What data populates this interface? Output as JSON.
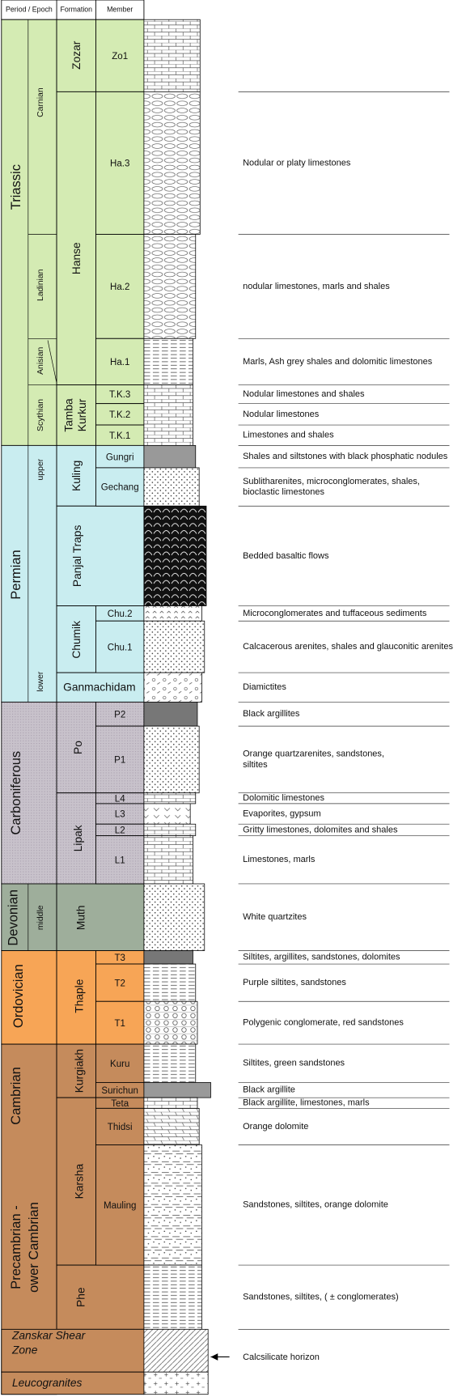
{
  "header": {
    "period": "Period / Epoch",
    "formation": "Formation",
    "member": "Member"
  },
  "periods": [
    {
      "name": "Triassic"
    },
    {
      "name": "Permian"
    },
    {
      "name": "Carboniferous"
    },
    {
      "name": "Devonian"
    },
    {
      "name": "Ordovician"
    },
    {
      "name": "Cambrian"
    }
  ],
  "precambrian_label": [
    "Precambrian -",
    "ower Cambrian"
  ],
  "epochs": [
    {
      "name": "Carnian"
    },
    {
      "name": "Ladinian"
    },
    {
      "name": "Anisian"
    },
    {
      "name": "Scythian"
    },
    {
      "name": "upper"
    },
    {
      "name": "lower"
    },
    {
      "name": "middle"
    }
  ],
  "formations": [
    {
      "lines": [
        "Zozar"
      ]
    },
    {
      "lines": [
        "Hanse"
      ]
    },
    {
      "lines": [
        "Tamba",
        "Kurkur"
      ]
    },
    {
      "lines": [
        "Kuling"
      ]
    },
    {
      "lines": [
        "Panjal Traps"
      ]
    },
    {
      "lines": [
        "Chumik"
      ]
    },
    {
      "lines": [
        "Ganmachidam"
      ]
    },
    {
      "lines": [
        "Po"
      ]
    },
    {
      "lines": [
        "Lipak"
      ]
    },
    {
      "lines": [
        "Muth"
      ]
    },
    {
      "lines": [
        "Thaple"
      ]
    },
    {
      "lines": [
        "Kurgiakh"
      ]
    },
    {
      "lines": [
        "Karsha"
      ]
    },
    {
      "lines": [
        "Phe"
      ]
    },
    {
      "lines": [
        "Zanskar Shear",
        "Zone"
      ]
    },
    {
      "lines": [
        "Leucogranites"
      ]
    }
  ],
  "members": [
    "Zo1",
    "Ha.3",
    "Ha.2",
    "Ha.1",
    "T.K.3",
    "T.K.2",
    "T.K.1",
    "Gungri",
    "Gechang",
    "Chu.2",
    "Chu.1",
    "P2",
    "P1",
    "L4",
    "L3",
    "L2",
    "L1",
    "T3",
    "T2",
    "T1",
    "Kuru",
    "Surichun",
    "Teta",
    "Thidsi",
    "Mauling"
  ],
  "descriptions": [
    {
      "lines": [
        "Nodular or platy limestones"
      ]
    },
    {
      "lines": [
        "nodular limestones, marls and shales"
      ]
    },
    {
      "lines": [
        "Marls, Ash grey shales and dolomitic limestones"
      ]
    },
    {
      "lines": [
        "Nodular limestones and shales"
      ]
    },
    {
      "lines": [
        "Nodular limestones"
      ]
    },
    {
      "lines": [
        "Limestones and shales"
      ]
    },
    {
      "lines": [
        "Shales and siltstones with black phosphatic nodules"
      ]
    },
    {
      "lines": [
        "Sublitharenites, microconglomerates, shales,",
        "bioclastic limestones"
      ]
    },
    {
      "lines": [
        "Bedded basaltic flows"
      ]
    },
    {
      "lines": [
        "Microconglomerates and tuffaceous sediments"
      ]
    },
    {
      "lines": [
        "Calcacerous arenites, shales and glauconitic arenites"
      ]
    },
    {
      "lines": [
        "Diamictites"
      ]
    },
    {
      "lines": [
        "Black argillites"
      ]
    },
    {
      "lines": [
        "Orange quartzarenites, sandstones,",
        "siltites"
      ]
    },
    {
      "lines": [
        "Dolomitic limestones"
      ]
    },
    {
      "lines": [
        "Evaporites, gypsum"
      ]
    },
    {
      "lines": [
        "Gritty limestones, dolomites and shales"
      ]
    },
    {
      "lines": [
        "Limestones, marls"
      ]
    },
    {
      "lines": [
        "White quartzites"
      ]
    },
    {
      "lines": [
        "Siltites, argillites, sandstones, dolomites"
      ]
    },
    {
      "lines": [
        "Purple siltites, sandstones"
      ]
    },
    {
      "lines": [
        "Polygenic conglomerate, red sandstones"
      ]
    },
    {
      "lines": [
        "Siltites, green sandstones"
      ]
    },
    {
      "lines": [
        "Black argillite"
      ]
    },
    {
      "lines": [
        "Black argillite, limestones, marls"
      ]
    },
    {
      "lines": [
        "Orange dolomite"
      ]
    },
    {
      "lines": [
        "Sandstones, siltites, orange dolomite"
      ]
    },
    {
      "lines": [
        "Sandstones, siltites, ( ± conglomerates)"
      ]
    },
    {
      "lines": [
        "Calcsilicate horizon"
      ]
    }
  ]
}
